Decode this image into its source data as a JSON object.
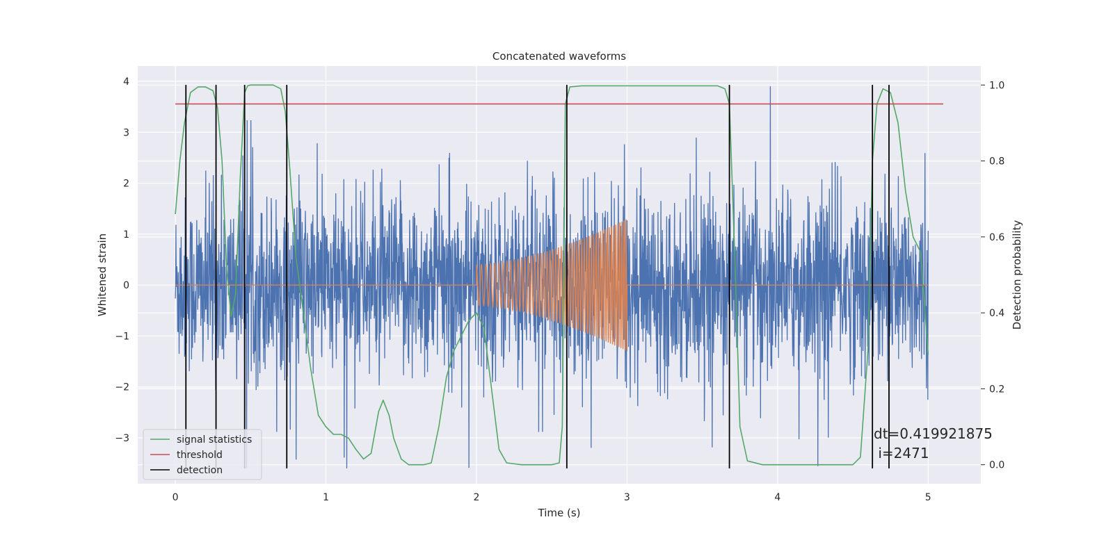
{
  "chart_data": {
    "type": "line",
    "title": "Concatenated waveforms",
    "xlabel": "Time (s)",
    "ylabel": "Whitened strain",
    "ylabel_right": "Detection probability",
    "xlim": [
      -0.25,
      5.35
    ],
    "ylim": [
      -3.9,
      4.3
    ],
    "ylim_right": [
      -0.05,
      1.05
    ],
    "x_ticks": [
      0,
      1,
      2,
      3,
      4,
      5
    ],
    "y_ticks": [
      -3,
      -2,
      -1,
      0,
      1,
      2,
      3,
      4
    ],
    "y_ticks_right": [
      0.0,
      0.2,
      0.4,
      0.6,
      0.8,
      1.0
    ],
    "x_tick_labels": [
      "0",
      "1",
      "2",
      "3",
      "4",
      "5"
    ],
    "y_tick_labels": [
      "−3",
      "−2",
      "−1",
      "0",
      "1",
      "2",
      "3",
      "4"
    ],
    "y_tick_labels_right": [
      "0.0",
      "0.2",
      "0.4",
      "0.6",
      "0.8",
      "1.0"
    ],
    "grid": true,
    "legend_position": "lower-left",
    "series": [
      {
        "name": "",
        "axis": "left",
        "color": "#4c72b0",
        "kind": "noise",
        "x_range": [
          0,
          5
        ],
        "typical_amplitude": 1.0,
        "peak_amplitude": 3.9
      },
      {
        "name": "",
        "axis": "left",
        "color": "#dd8452",
        "kind": "chirp",
        "x_range": [
          0,
          5
        ],
        "chirp_start": 2.0,
        "chirp_end": 3.0,
        "amplitude_start": 0.4,
        "amplitude_end": 1.3
      },
      {
        "name": "signal statistics",
        "axis": "right",
        "color": "#55a868",
        "x": [
          0.0,
          0.03,
          0.06,
          0.1,
          0.15,
          0.2,
          0.25,
          0.28,
          0.31,
          0.34,
          0.37,
          0.4,
          0.43,
          0.46,
          0.48,
          0.5,
          0.55,
          0.6,
          0.65,
          0.7,
          0.73,
          0.76,
          0.8,
          0.85,
          0.9,
          0.95,
          1.0,
          1.05,
          1.1,
          1.15,
          1.2,
          1.25,
          1.3,
          1.35,
          1.38,
          1.42,
          1.45,
          1.5,
          1.55,
          1.6,
          1.65,
          1.7,
          1.75,
          1.8,
          1.85,
          1.9,
          1.95,
          2.0,
          2.05,
          2.1,
          2.15,
          2.2,
          2.3,
          2.4,
          2.5,
          2.55,
          2.57,
          2.59,
          2.62,
          2.7,
          3.0,
          3.3,
          3.6,
          3.65,
          3.68,
          3.72,
          3.75,
          3.8,
          3.9,
          4.0,
          4.2,
          4.4,
          4.5,
          4.55,
          4.6,
          4.63,
          4.66,
          4.7,
          4.75,
          4.8,
          4.85,
          4.9,
          4.95,
          4.98,
          5.0
        ],
        "values": [
          0.66,
          0.8,
          0.9,
          0.98,
          0.995,
          0.995,
          0.985,
          0.94,
          0.8,
          0.52,
          0.39,
          0.45,
          0.75,
          0.98,
          0.998,
          1.0,
          1.0,
          1.0,
          1.0,
          0.99,
          0.93,
          0.78,
          0.55,
          0.4,
          0.25,
          0.13,
          0.1,
          0.08,
          0.08,
          0.07,
          0.04,
          0.015,
          0.03,
          0.14,
          0.17,
          0.13,
          0.07,
          0.015,
          0.0,
          0.0,
          0.0,
          0.005,
          0.1,
          0.23,
          0.3,
          0.34,
          0.38,
          0.4,
          0.36,
          0.2,
          0.04,
          0.005,
          0.0,
          0.0,
          0.0,
          0.005,
          0.1,
          0.95,
          0.995,
          0.998,
          0.998,
          0.998,
          0.998,
          0.99,
          0.95,
          0.5,
          0.1,
          0.01,
          0.0,
          0.0,
          0.0,
          0.0,
          0.0,
          0.02,
          0.3,
          0.8,
          0.95,
          0.99,
          0.98,
          0.9,
          0.72,
          0.6,
          0.56,
          0.4,
          0.29
        ]
      },
      {
        "name": "threshold",
        "axis": "right",
        "color": "#c44e52",
        "x": [
          0.0,
          5.1
        ],
        "values": [
          0.95,
          0.95
        ]
      },
      {
        "name": "detection",
        "kind": "vertical-lines",
        "color": "#000000",
        "x": [
          0.07,
          0.27,
          0.46,
          0.74,
          2.6,
          3.68,
          4.63,
          4.74
        ],
        "y_from": -3.6,
        "y_to": 3.93
      }
    ],
    "annotations": [
      "dt=0.419921875",
      " i=2471"
    ]
  }
}
